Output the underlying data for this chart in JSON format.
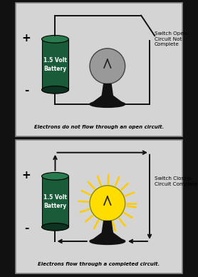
{
  "panel_bg": "#d4d4d4",
  "border_color": "#888888",
  "separator_color": "#111111",
  "battery_color": "#1a5c3a",
  "battery_top_color": "#2a7a50",
  "battery_bot_color": "#0d3320",
  "wire_color": "#111111",
  "bulb_off_color": "#999999",
  "bulb_off_edge": "#444444",
  "bulb_on_color": "#ffdd00",
  "bulb_on_edge": "#888800",
  "ray_color": "#ffcc00",
  "base_color": "#111111",
  "text_top": "Electrons do not flow through an open circuit.",
  "text_bottom": "Electrons flow through a completed circuit.",
  "label_open": "Switch Open-\nCircuit Not\nComplete",
  "label_closed": "Switch Closed-\nCircuit Complete",
  "plus_label": "+",
  "minus_label": "-",
  "battery_text": "1.5 Volt\nBattery"
}
